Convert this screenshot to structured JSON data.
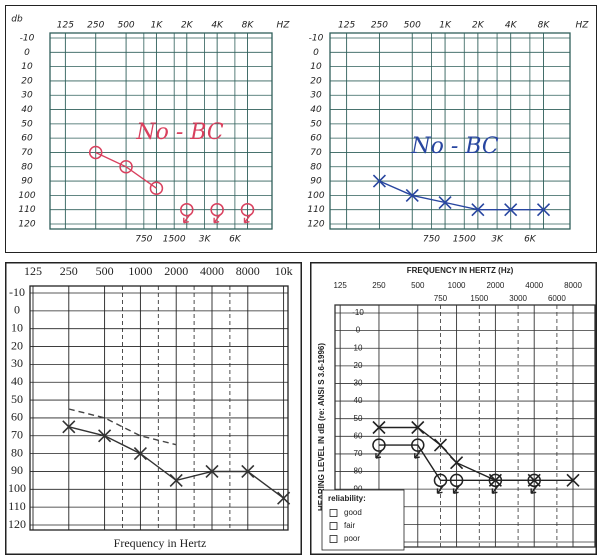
{
  "chart_data": [
    {
      "type": "line",
      "y_label": "db",
      "x_label": "HZ",
      "xscale": "log",
      "xlim": [
        88,
        14000
      ],
      "xticks": [
        125,
        250,
        500,
        {
          "value": 1000,
          "label": "1K"
        },
        {
          "value": 2000,
          "label": "2K"
        },
        {
          "value": 4000,
          "label": "4K"
        },
        {
          "value": 8000,
          "label": "8K"
        }
      ],
      "xticks_minor": [
        750,
        1500,
        {
          "value": 3000,
          "label": "3K"
        },
        {
          "value": 6000,
          "label": "6K"
        }
      ],
      "minor_grid_style": "solid",
      "ylim": [
        -10,
        120
      ],
      "yticks": [
        -10,
        0,
        10,
        20,
        30,
        40,
        50,
        60,
        70,
        80,
        90,
        100,
        110,
        120
      ],
      "y_inverted": true,
      "grid": true,
      "grid_color": "#2f5f5a",
      "annotation": "No - BC",
      "annotation_color": "#d9405e",
      "series": [
        {
          "marker": "o",
          "line": "solid",
          "color": "#d9405e",
          "x": [
            250,
            500,
            1000
          ],
          "values": [
            70,
            80,
            95
          ]
        },
        {
          "marker": "o",
          "line": "none",
          "no_response": true,
          "color": "#d9405e",
          "x": [
            2000,
            4000,
            8000
          ],
          "values": [
            110,
            110,
            110
          ]
        }
      ]
    },
    {
      "type": "line",
      "x_label": "HZ",
      "xscale": "log",
      "xlim": [
        88,
        14000
      ],
      "xticks": [
        125,
        250,
        500,
        {
          "value": 1000,
          "label": "1K"
        },
        {
          "value": 2000,
          "label": "2K"
        },
        {
          "value": 4000,
          "label": "4K"
        },
        {
          "value": 8000,
          "label": "8K"
        }
      ],
      "xticks_minor": [
        750,
        1500,
        {
          "value": 3000,
          "label": "3K"
        },
        {
          "value": 6000,
          "label": "6K"
        }
      ],
      "minor_grid_style": "solid",
      "ylim": [
        -10,
        120
      ],
      "yticks": [
        -10,
        0,
        10,
        20,
        30,
        40,
        50,
        60,
        70,
        80,
        90,
        100,
        110,
        120
      ],
      "y_inverted": true,
      "grid": true,
      "grid_color": "#2f5f5a",
      "annotation": "No - BC",
      "annotation_color": "#2846a0",
      "series": [
        {
          "marker": "x",
          "line": "solid",
          "color": "#2846a0",
          "x": [
            250,
            500,
            1000,
            2000,
            4000,
            8000
          ],
          "values": [
            90,
            100,
            105,
            110,
            110,
            110
          ]
        }
      ]
    },
    {
      "type": "line",
      "x_label": "Frequency  in Hertz",
      "categories": [
        "125",
        "250",
        "500",
        "1000",
        "2000",
        "4000",
        "8000",
        "10k"
      ],
      "minor_grid_style": "dashed",
      "ylim": [
        -10,
        120
      ],
      "yticks": [
        -10,
        0,
        10,
        20,
        30,
        40,
        50,
        60,
        70,
        80,
        90,
        100,
        110,
        120
      ],
      "y_inverted": true,
      "grid": true,
      "grid_color": "#222222",
      "series": [
        {
          "marker": "x",
          "line": "solid",
          "color": "#333333",
          "values": [
            null,
            65,
            70,
            80,
            95,
            90,
            90,
            105
          ]
        },
        {
          "marker": "none",
          "line": "dashed",
          "color": "#444444",
          "values": [
            null,
            55,
            60,
            70,
            75,
            null,
            null,
            null
          ]
        }
      ]
    },
    {
      "type": "line",
      "title": "FREQUENCY IN HERTZ (Hz)",
      "y_label": "HEARING LEVEL IN dB (re: ANSI S 3.6-1996)",
      "xscale": "log",
      "xlim": [
        114,
        11850
      ],
      "xticks": [
        125,
        250,
        500,
        1000,
        2000,
        4000,
        8000
      ],
      "xticks_minor": [
        750,
        1500,
        3000,
        6000
      ],
      "minor_grid_style": "dashed",
      "ylim": [
        -10,
        120
      ],
      "yticks": [
        -10,
        0,
        10,
        20,
        30,
        40,
        50,
        60,
        70,
        80,
        90,
        100,
        110,
        120
      ],
      "y_inverted": true,
      "grid": true,
      "grid_color": "#333333",
      "legend_title": "reliability:",
      "legend_items": [
        "good",
        "fair",
        "poor"
      ],
      "series": [
        {
          "marker": "x",
          "line": "solid",
          "color": "#222222",
          "x": [
            250,
            500,
            750,
            1000,
            2000,
            4000,
            8000
          ],
          "values": [
            55,
            55,
            65,
            75,
            85,
            85,
            85
          ]
        },
        {
          "marker": "o",
          "line": "solid",
          "no_response": true,
          "color": "#222222",
          "x": [
            250,
            500,
            750,
            1000,
            2000,
            4000
          ],
          "values": [
            65,
            65,
            85,
            85,
            85,
            85
          ]
        }
      ]
    }
  ]
}
